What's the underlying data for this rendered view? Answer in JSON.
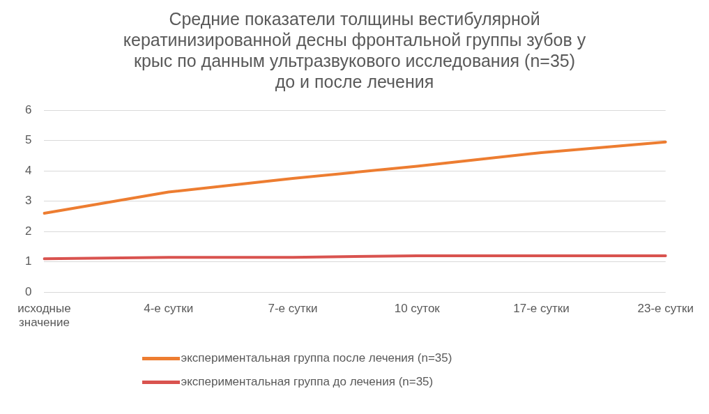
{
  "chart_data": {
    "type": "line",
    "title": "Средние показатели толщины вестибулярной кератинизированной десны фронтальной группы зубов у крыс по данным ультразвукового исследования (n=35) до и после лечения",
    "categories": [
      "исходные значение",
      "4-е сутки",
      "7-е сутки",
      "10 суток",
      "17-е сутки",
      "23-е сутки"
    ],
    "series": [
      {
        "name": "экспериментальная группа после лечения (n=35)",
        "color": "#ed7d31",
        "values": [
          2.6,
          3.3,
          3.75,
          4.15,
          4.6,
          4.95
        ]
      },
      {
        "name": "экспериментальная группа до лечения (n=35)",
        "color": "#d9534f",
        "values": [
          1.1,
          1.15,
          1.15,
          1.2,
          1.2,
          1.2
        ]
      }
    ],
    "ylim": [
      0,
      6
    ],
    "yticks": [
      0,
      1,
      2,
      3,
      4,
      5,
      6
    ],
    "grid": "y",
    "legend": "bottom",
    "marker": "none"
  }
}
